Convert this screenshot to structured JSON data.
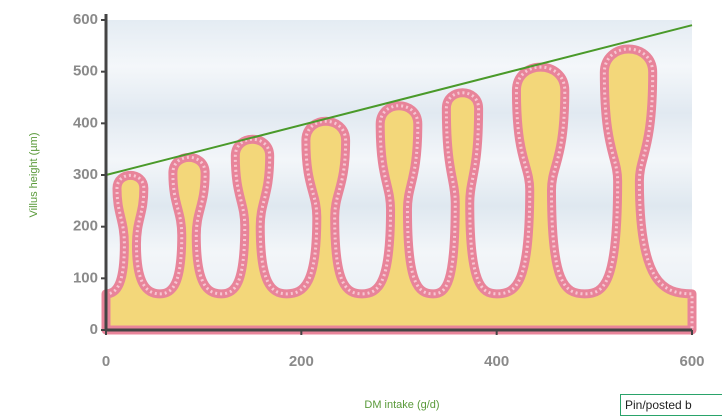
{
  "chart_data": {
    "type": "line",
    "xlabel": "DM intake (g/d)",
    "ylabel": "Villus height (µm)",
    "xlim": [
      0,
      600
    ],
    "ylim": [
      0,
      600
    ],
    "xticks": [
      0,
      200,
      400,
      600
    ],
    "yticks": [
      0,
      100,
      200,
      300,
      400,
      500,
      600
    ],
    "series": [
      {
        "color": "#4a9a2a",
        "x": [
          0,
          600
        ],
        "values": [
          300,
          590
        ]
      },
      {
        "color": "#e8849a",
        "fill": "#f3d77a",
        "style": "villi",
        "x": [
          0,
          25,
          55,
          85,
          118,
          150,
          185,
          225,
          262,
          300,
          335,
          365,
          400,
          445,
          490,
          535,
          600
        ],
        "values": [
          70,
          300,
          70,
          335,
          70,
          370,
          70,
          405,
          70,
          435,
          70,
          460,
          70,
          510,
          70,
          545,
          70
        ]
      }
    ]
  },
  "footer": {
    "pin": "Pin/posted b"
  }
}
